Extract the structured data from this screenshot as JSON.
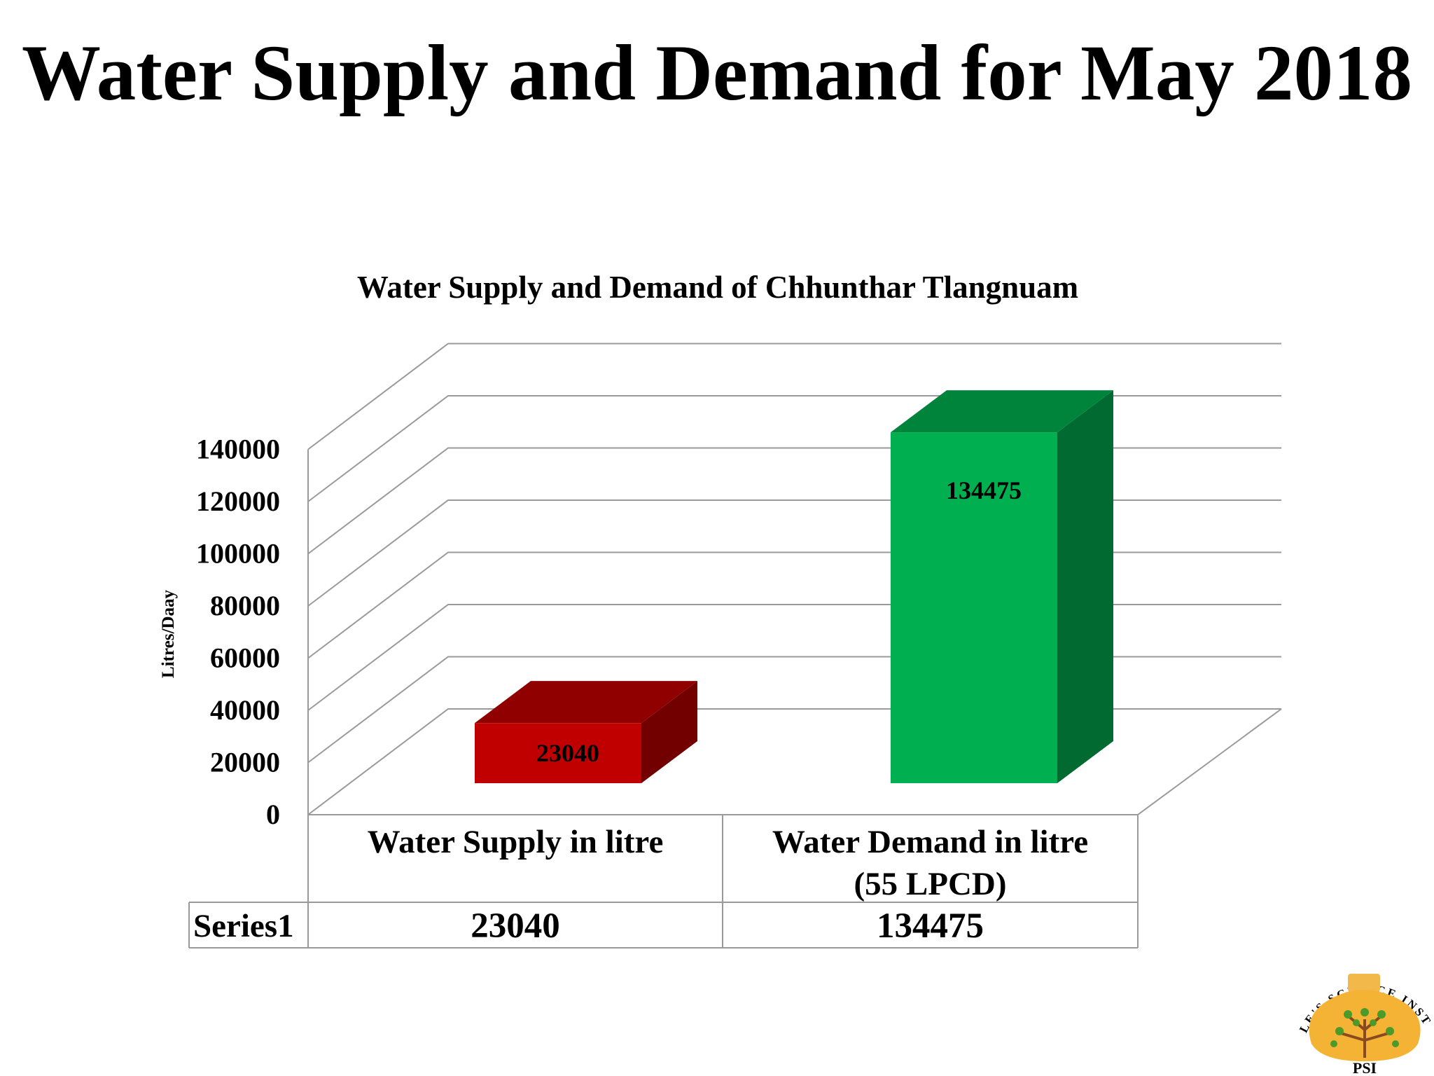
{
  "slide": {
    "title": "Water Supply and Demand for May 2018"
  },
  "chart_data": {
    "type": "bar",
    "title": "Water Supply and Demand of Chhunthar Tlangnuam",
    "ylabel": "Litres/Daay",
    "xlabel": "",
    "categories": [
      "Water Supply in litre",
      "Water Demand in litre (55 LPCD)"
    ],
    "series": [
      {
        "name": "Series1",
        "values": [
          23040,
          134475
        ]
      }
    ],
    "ylim": [
      0,
      140000
    ],
    "yticks": [
      "0",
      "20000",
      "40000",
      "60000",
      "80000",
      "100000",
      "120000",
      "140000"
    ],
    "data_labels": [
      "23040",
      "134475"
    ],
    "data_table": {
      "row_label": "Series1",
      "values": [
        "23040",
        "134475"
      ]
    },
    "bar_colors": [
      "#c00000",
      "#00b050"
    ],
    "grid": true,
    "legend": "none",
    "style": "3d"
  },
  "logo": {
    "arc_text": "PEOPLE'S SCIENCE INSTITUTE",
    "abbrev": "PSI"
  }
}
